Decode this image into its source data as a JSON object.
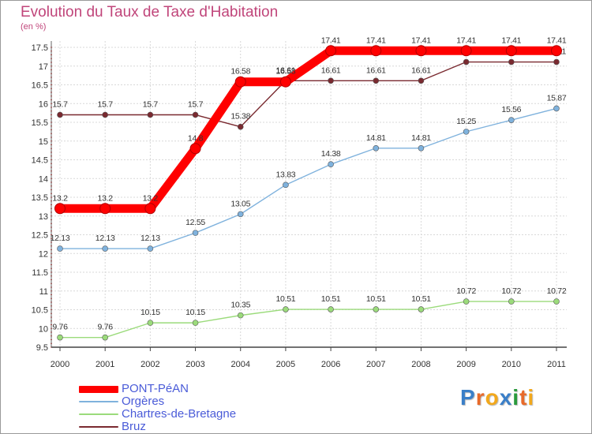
{
  "chart_data": {
    "type": "line",
    "title": "Evolution du Taux de Taxe d'Habitation",
    "unit_label": "(en %)",
    "x": [
      "2000",
      "2001",
      "2002",
      "2003",
      "2004",
      "2005",
      "2006",
      "2007",
      "2008",
      "2009",
      "2010",
      "2011"
    ],
    "ylim": [
      9.5,
      17.5
    ],
    "yticks": [
      "9.5",
      "10",
      "10.5",
      "11",
      "11.5",
      "12",
      "12.5",
      "13",
      "13.5",
      "14",
      "14.5",
      "15",
      "15.5",
      "16",
      "16.5",
      "17",
      "17.5"
    ],
    "grid": true,
    "legend_position": "bottom-left",
    "series": [
      {
        "name": "Bruz",
        "color": "#7a2a30",
        "values": [
          15.7,
          15.7,
          15.7,
          15.7,
          15.38,
          16.61,
          16.61,
          16.61,
          16.61,
          17.11,
          17.11,
          17.11
        ],
        "labels": [
          "15.7",
          "15.7",
          "15.7",
          "15.7",
          "15.38",
          "16.61",
          "16.61",
          "16.61",
          "16.61",
          "17.11",
          "17.11",
          "17.11"
        ]
      },
      {
        "name": "Chartres-de-Bretagne",
        "color": "#9bdb7b",
        "values": [
          9.76,
          9.76,
          10.15,
          10.15,
          10.35,
          10.51,
          10.51,
          10.51,
          10.51,
          10.72,
          10.72,
          10.72
        ],
        "labels": [
          "9.76",
          "9.76",
          "10.15",
          "10.15",
          "10.35",
          "10.51",
          "10.51",
          "10.51",
          "10.51",
          "10.72",
          "10.72",
          "10.72"
        ]
      },
      {
        "name": "Orgères",
        "color": "#7fb2dd",
        "values": [
          12.13,
          12.13,
          12.13,
          12.55,
          13.05,
          13.83,
          14.38,
          14.81,
          14.81,
          15.25,
          15.56,
          15.87
        ],
        "labels": [
          "12.13",
          "12.13",
          "12.13",
          "12.55",
          "13.05",
          "13.83",
          "14.38",
          "14.81",
          "14.81",
          "15.25",
          "15.56",
          "15.87"
        ]
      },
      {
        "name": "PONT-PéAN",
        "color": "#ff0000",
        "values": [
          13.2,
          13.2,
          13.2,
          14.8,
          16.58,
          16.58,
          17.41,
          17.41,
          17.41,
          17.41,
          17.41,
          17.41
        ],
        "labels": [
          "13.2",
          "13.2",
          "13.2",
          "14.8",
          "16.58",
          "16.58",
          "17.41",
          "17.41",
          "17.41",
          "17.41",
          "17.41",
          "17.41"
        ]
      }
    ],
    "legend": [
      {
        "name": "PONT-PéAN",
        "color": "#ff0000"
      },
      {
        "name": "Orgères",
        "color": "#7fb2dd"
      },
      {
        "name": "Chartres-de-Bretagne",
        "color": "#9bdb7b"
      },
      {
        "name": "Bruz",
        "color": "#7a2a30"
      }
    ]
  },
  "logo": {
    "letters": [
      "P",
      "r",
      "o",
      "x",
      "i",
      "t",
      "i"
    ],
    "colors": [
      "#3a7fc8",
      "#e86a2a",
      "#f2a81c",
      "#3a7fc8",
      "#2a9a3c",
      "#e86a2a",
      "#f2a81c"
    ]
  }
}
